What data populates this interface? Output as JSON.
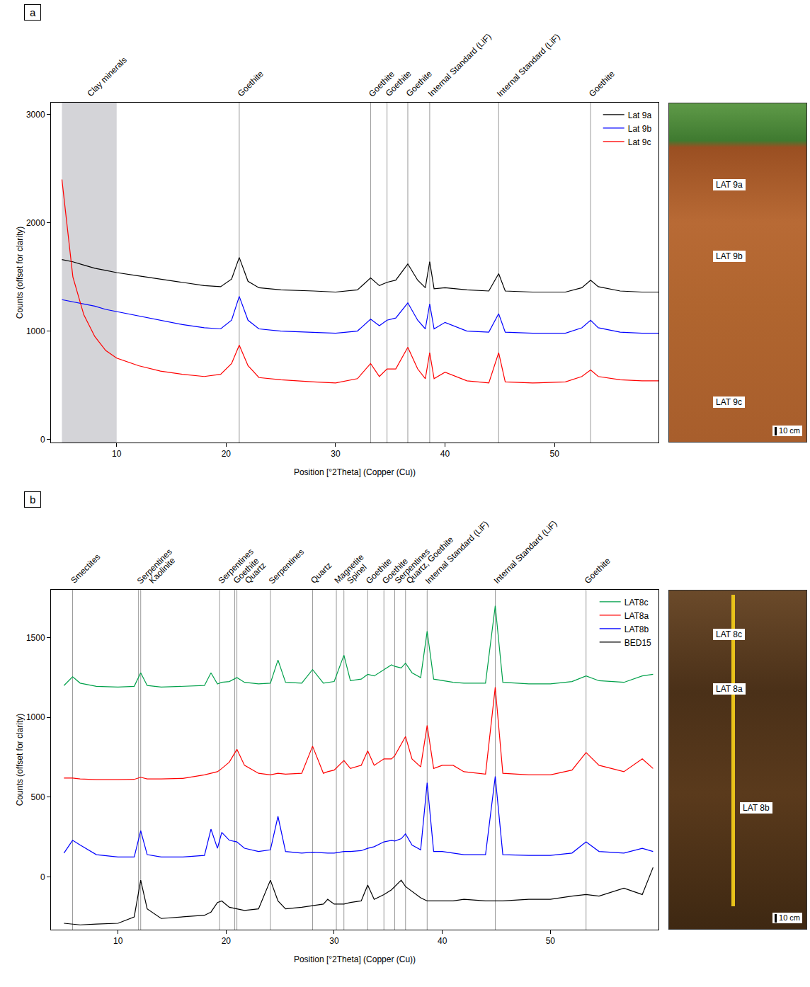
{
  "chart_data": [
    {
      "type": "line",
      "panel_label": "a",
      "x_label": "Position [°2Theta] (Copper (Cu))",
      "y_label": "Counts (offset for clarity)",
      "xlim": [
        4,
        59.5
      ],
      "xticks": [
        10,
        20,
        30,
        40,
        50
      ],
      "ylim": [
        -30,
        3110
      ],
      "yticks": [
        0,
        1000,
        2000,
        3000
      ],
      "grid": false,
      "legend": "upper right",
      "shaded_regions": [
        {
          "x0": 5,
          "x1": 10,
          "label": "Clay minerals"
        }
      ],
      "reference_lines": [
        {
          "x": 21.2,
          "label": "Goethite"
        },
        {
          "x": 33.2,
          "label": "Goethite"
        },
        {
          "x": 34.7,
          "label": "Goethite"
        },
        {
          "x": 36.6,
          "label": "Goethite"
        },
        {
          "x": 38.6,
          "label": "Internal Standard (LiF)"
        },
        {
          "x": 44.9,
          "label": "Internal Standard (LiF)"
        },
        {
          "x": 53.3,
          "label": "Goethite"
        }
      ],
      "x": [
        5,
        6,
        7,
        8,
        9,
        10,
        12,
        14,
        16,
        18,
        19.5,
        20.5,
        21.2,
        22,
        23,
        25,
        28,
        30,
        32,
        33.2,
        34,
        34.7,
        35.5,
        36.6,
        37.5,
        38.2,
        38.6,
        39,
        40,
        41,
        42,
        44,
        44.9,
        45.5,
        48,
        51,
        52.5,
        53.3,
        54,
        56,
        58,
        59.5
      ],
      "series": [
        {
          "name": "Lat 9a",
          "color": "#000000",
          "values": [
            1660,
            1640,
            1610,
            1580,
            1560,
            1540,
            1510,
            1480,
            1450,
            1420,
            1410,
            1480,
            1680,
            1460,
            1400,
            1380,
            1370,
            1360,
            1380,
            1490,
            1420,
            1450,
            1470,
            1620,
            1470,
            1400,
            1640,
            1390,
            1400,
            1390,
            1380,
            1370,
            1530,
            1370,
            1360,
            1360,
            1400,
            1470,
            1410,
            1370,
            1360,
            1360
          ]
        },
        {
          "name": "Lat 9b",
          "color": "#0000ff",
          "values": [
            1290,
            1270,
            1250,
            1230,
            1200,
            1180,
            1140,
            1100,
            1060,
            1030,
            1020,
            1100,
            1320,
            1100,
            1020,
            1000,
            990,
            980,
            1000,
            1110,
            1050,
            1100,
            1120,
            1260,
            1100,
            1020,
            1250,
            1020,
            1080,
            1040,
            1000,
            990,
            1160,
            990,
            980,
            980,
            1030,
            1100,
            1030,
            990,
            980,
            980
          ]
        },
        {
          "name": "Lat 9c",
          "color": "#ff0000",
          "values": [
            2400,
            1500,
            1150,
            950,
            820,
            750,
            680,
            630,
            600,
            580,
            600,
            700,
            870,
            680,
            570,
            550,
            530,
            520,
            560,
            700,
            580,
            650,
            650,
            850,
            650,
            560,
            800,
            560,
            620,
            580,
            540,
            520,
            800,
            530,
            520,
            530,
            580,
            640,
            580,
            550,
            540,
            540
          ]
        }
      ],
      "photo": {
        "labels": [
          "LAT 9a",
          "LAT 9b",
          "LAT 9c"
        ],
        "scale_label": "10 cm"
      }
    },
    {
      "type": "line",
      "panel_label": "b",
      "x_label": "Position [°2Theta] (Copper (Cu))",
      "y_label": "Counts (offset for clarity)",
      "xlim": [
        3.8,
        60
      ],
      "xticks": [
        10,
        20,
        30,
        40,
        50
      ],
      "ylim": [
        -330,
        1800
      ],
      "yticks": [
        0,
        500,
        1000,
        1500
      ],
      "grid": false,
      "legend": "upper right",
      "reference_lines": [
        {
          "x": 5.8,
          "label": "Smectites"
        },
        {
          "x": 11.9,
          "label": "Serpentines"
        },
        {
          "x": 12.1,
          "label": "Kaolinite"
        },
        {
          "x": 19.4,
          "label": "Serpentines"
        },
        {
          "x": 20.8,
          "label": "Goethite"
        },
        {
          "x": 21.0,
          "label": "Quartz"
        },
        {
          "x": 24.1,
          "label": "Serpentines"
        },
        {
          "x": 28.0,
          "label": "Quartz"
        },
        {
          "x": 30.2,
          "label": "Magnetite"
        },
        {
          "x": 30.9,
          "label": "Spinel"
        },
        {
          "x": 33.1,
          "label": "Goethite"
        },
        {
          "x": 34.6,
          "label": "Goethite"
        },
        {
          "x": 35.6,
          "label": "Serpentines"
        },
        {
          "x": 36.6,
          "label": "Quartz, Goethite"
        },
        {
          "x": 38.6,
          "label": "Internal Standard (LiF)"
        },
        {
          "x": 44.9,
          "label": "Internal Standard (LiF)"
        },
        {
          "x": 53.3,
          "label": "Goethite"
        }
      ],
      "x": [
        5,
        5.8,
        6.5,
        8,
        10,
        11.5,
        12.1,
        12.7,
        14,
        16,
        18,
        18.6,
        19.2,
        19.6,
        20.3,
        21.0,
        21.7,
        23,
        24.1,
        24.8,
        25.5,
        27,
        28.0,
        29,
        29.4,
        30,
        30.9,
        31.5,
        32.5,
        33.1,
        33.7,
        34.6,
        35.3,
        35.6,
        36.2,
        36.6,
        37.2,
        38.0,
        38.6,
        39.2,
        40,
        41,
        42,
        44,
        44.9,
        45.6,
        48,
        50,
        52,
        53.3,
        54.5,
        56.8,
        58.5,
        59.5
      ],
      "series": [
        {
          "name": "LAT8c",
          "color": "#00a04a",
          "values": [
            1200,
            1255,
            1215,
            1195,
            1190,
            1195,
            1280,
            1200,
            1190,
            1195,
            1200,
            1280,
            1210,
            1220,
            1225,
            1250,
            1220,
            1210,
            1215,
            1360,
            1220,
            1215,
            1300,
            1215,
            1220,
            1225,
            1390,
            1230,
            1240,
            1270,
            1260,
            1300,
            1330,
            1320,
            1310,
            1340,
            1280,
            1250,
            1540,
            1240,
            1230,
            1220,
            1215,
            1215,
            1700,
            1220,
            1210,
            1210,
            1225,
            1260,
            1230,
            1220,
            1260,
            1270
          ]
        },
        {
          "name": "LAT8a",
          "color": "#ff0000",
          "values": [
            620,
            620,
            615,
            610,
            610,
            612,
            625,
            615,
            615,
            618,
            640,
            650,
            660,
            680,
            720,
            800,
            700,
            650,
            640,
            650,
            645,
            650,
            820,
            650,
            660,
            670,
            730,
            680,
            700,
            790,
            700,
            740,
            740,
            760,
            830,
            880,
            740,
            690,
            950,
            680,
            700,
            700,
            660,
            645,
            1190,
            650,
            640,
            640,
            670,
            780,
            700,
            660,
            740,
            680
          ]
        },
        {
          "name": "LAT8b",
          "color": "#0000ff",
          "values": [
            150,
            230,
            200,
            140,
            125,
            125,
            290,
            140,
            125,
            125,
            135,
            300,
            180,
            280,
            230,
            220,
            180,
            160,
            170,
            380,
            160,
            150,
            155,
            150,
            150,
            150,
            160,
            160,
            165,
            180,
            190,
            220,
            230,
            225,
            240,
            270,
            200,
            170,
            590,
            160,
            160,
            150,
            140,
            140,
            630,
            140,
            135,
            135,
            150,
            220,
            160,
            150,
            180,
            160
          ]
        },
        {
          "name": "BED15",
          "color": "#000000",
          "values": [
            -290,
            -295,
            -300,
            -295,
            -290,
            -250,
            -20,
            -200,
            -260,
            -250,
            -240,
            -220,
            -160,
            -150,
            -190,
            -200,
            -210,
            -200,
            -20,
            -150,
            -200,
            -190,
            -180,
            -170,
            -140,
            -170,
            -170,
            -160,
            -150,
            -50,
            -140,
            -110,
            -80,
            -60,
            -20,
            -60,
            -90,
            -130,
            -150,
            -150,
            -150,
            -150,
            -140,
            -150,
            -150,
            -150,
            -140,
            -140,
            -120,
            -110,
            -120,
            -70,
            -110,
            60
          ]
        }
      ],
      "photo": {
        "labels": [
          "LAT 8c",
          "LAT 8a",
          "LAT 8b"
        ],
        "scale_label": "10 cm"
      }
    }
  ]
}
